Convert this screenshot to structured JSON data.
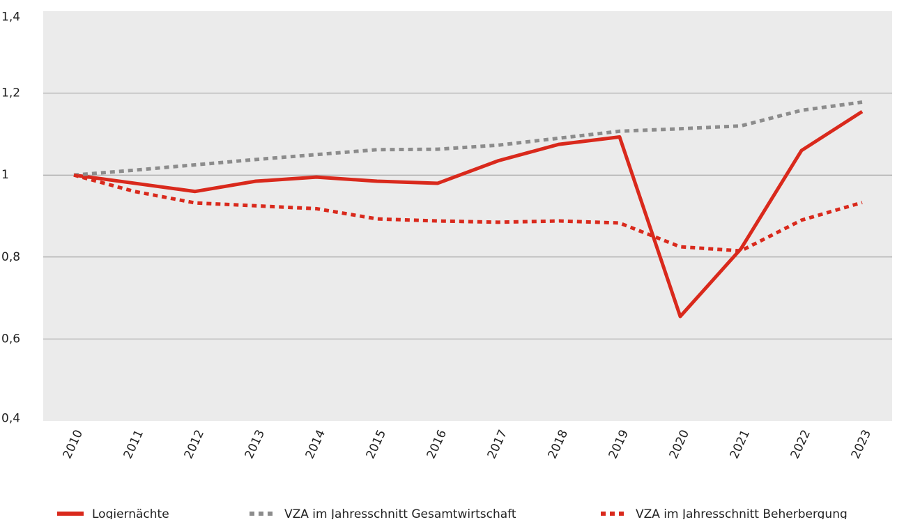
{
  "chart_data": {
    "type": "line",
    "x": [
      "2010",
      "2011",
      "2012",
      "2013",
      "2014",
      "2015",
      "2016",
      "2017",
      "2018",
      "2019",
      "2020",
      "2021",
      "2022",
      "2023"
    ],
    "series": [
      {
        "name": "Logiernächte",
        "color": "#d9291c",
        "dash": "solid",
        "values": [
          1.0,
          0.98,
          0.96,
          0.985,
          0.995,
          0.985,
          0.98,
          1.035,
          1.075,
          1.093,
          0.655,
          0.82,
          1.06,
          1.155
        ]
      },
      {
        "name": "VZA im Jahresschnitt Gesamtwirtschaft",
        "color": "#8c8c8c",
        "dash": "dotted",
        "values": [
          1.0,
          1.012,
          1.025,
          1.038,
          1.05,
          1.062,
          1.063,
          1.073,
          1.09,
          1.107,
          1.113,
          1.12,
          1.158,
          1.178
        ]
      },
      {
        "name": "VZA im Jahresschnitt Beherbergung",
        "color": "#d9291c",
        "dash": "dotted",
        "values": [
          1.0,
          0.96,
          0.932,
          0.925,
          0.918,
          0.893,
          0.888,
          0.885,
          0.888,
          0.883,
          0.825,
          0.815,
          0.89,
          0.933
        ]
      }
    ],
    "ylim": [
      0.4,
      1.4
    ],
    "yticks": [
      {
        "value": 0.4,
        "label": "0,4"
      },
      {
        "value": 0.6,
        "label": "0,6"
      },
      {
        "value": 0.8,
        "label": "0,8"
      },
      1,
      {
        "value": 1.2,
        "label": "1,2"
      },
      {
        "value": 1.4,
        "label": "1,4"
      }
    ],
    "grid": true,
    "legend": "bottom"
  }
}
